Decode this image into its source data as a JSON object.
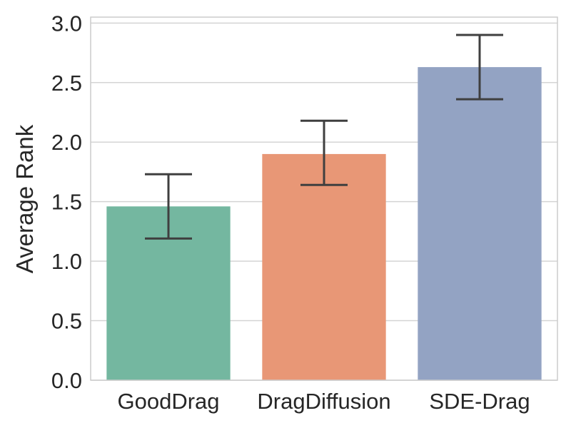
{
  "chart_data": {
    "type": "bar",
    "title": "",
    "xlabel": "",
    "ylabel": "Average Rank",
    "ylim": [
      0,
      3.05
    ],
    "yticks": [
      0.0,
      0.5,
      1.0,
      1.5,
      2.0,
      2.5,
      3.0
    ],
    "ytick_labels": [
      "0.0",
      "0.5",
      "1.0",
      "1.5",
      "2.0",
      "2.5",
      "3.0"
    ],
    "grid": true,
    "categories": [
      "GoodDrag",
      "DragDiffusion",
      "SDE-Drag"
    ],
    "values": [
      1.46,
      1.9,
      2.63
    ],
    "error_low": [
      1.19,
      1.64,
      2.36
    ],
    "error_high": [
      1.73,
      2.18,
      2.9
    ],
    "colors": [
      "#74b7a0",
      "#e89776",
      "#93a3c3"
    ]
  }
}
